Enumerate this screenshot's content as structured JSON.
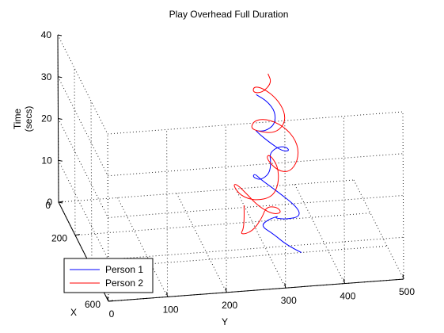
{
  "chart_data": {
    "type": "line",
    "projection": "3d",
    "title": "Play Overhead Full Duration",
    "xlabel": "X",
    "ylabel": "Y",
    "zlabel_lines": [
      "Time",
      "(secs)"
    ],
    "xticks": [
      "0",
      "200",
      "600"
    ],
    "yticks": [
      "0",
      "100",
      "200",
      "300",
      "400",
      "500"
    ],
    "zticks": [
      "0",
      "10",
      "20",
      "30",
      "40"
    ],
    "xlim": [
      0,
      600
    ],
    "ylim": [
      0,
      500
    ],
    "zlim": [
      0,
      40
    ],
    "grid": true,
    "legend_position": "bottom-left",
    "series": [
      {
        "name": "Person 1",
        "color": "#0000ff",
        "points": [
          [
            400,
            355,
            0
          ],
          [
            380,
            335,
            1
          ],
          [
            330,
            318,
            2
          ],
          [
            300,
            300,
            3
          ],
          [
            290,
            315,
            4
          ],
          [
            300,
            330,
            5
          ],
          [
            330,
            322,
            6
          ],
          [
            360,
            318,
            7
          ],
          [
            395,
            330,
            8
          ],
          [
            410,
            352,
            9
          ],
          [
            380,
            352,
            10
          ],
          [
            300,
            328,
            11
          ],
          [
            250,
            308,
            12
          ],
          [
            240,
            300,
            13
          ],
          [
            270,
            292,
            14
          ],
          [
            310,
            288,
            15
          ],
          [
            350,
            294,
            16
          ],
          [
            340,
            310,
            17
          ],
          [
            300,
            318,
            18
          ],
          [
            270,
            320,
            19
          ],
          [
            260,
            336,
            20
          ],
          [
            290,
            346,
            21
          ],
          [
            340,
            344,
            22
          ],
          [
            360,
            328,
            23
          ],
          [
            330,
            312,
            24
          ],
          [
            310,
            300,
            25
          ],
          [
            300,
            292,
            26
          ],
          [
            330,
            290,
            27
          ],
          [
            360,
            300,
            28
          ],
          [
            350,
            318,
            29
          ],
          [
            300,
            326,
            30
          ],
          [
            260,
            318,
            31
          ],
          [
            240,
            302,
            32
          ]
        ]
      },
      {
        "name": "Person 2",
        "color": "#ff0000",
        "points": [
          [
            100,
            300,
            0
          ],
          [
            250,
            280,
            1
          ],
          [
            320,
            262,
            2
          ],
          [
            330,
            282,
            3
          ],
          [
            280,
            305,
            4
          ],
          [
            240,
            318,
            5
          ],
          [
            270,
            332,
            6
          ],
          [
            330,
            332,
            7
          ],
          [
            360,
            312,
            8
          ],
          [
            330,
            292,
            9
          ],
          [
            280,
            280,
            10
          ],
          [
            240,
            268,
            11
          ],
          [
            270,
            258,
            12
          ],
          [
            360,
            258,
            13
          ],
          [
            420,
            275,
            14
          ],
          [
            430,
            302,
            15
          ],
          [
            380,
            320,
            16
          ],
          [
            300,
            330,
            17
          ],
          [
            250,
            322,
            18
          ],
          [
            300,
            310,
            19
          ],
          [
            400,
            315,
            20
          ],
          [
            440,
            330,
            21
          ],
          [
            400,
            350,
            22
          ],
          [
            330,
            360,
            23
          ],
          [
            260,
            352,
            24
          ],
          [
            220,
            328,
            25
          ],
          [
            240,
            300,
            26
          ],
          [
            310,
            282,
            27
          ],
          [
            360,
            290,
            28
          ],
          [
            400,
            310,
            29
          ],
          [
            380,
            330,
            30
          ],
          [
            330,
            338,
            31
          ],
          [
            270,
            332,
            32
          ],
          [
            230,
            315,
            33
          ],
          [
            240,
            298,
            34
          ],
          [
            300,
            288,
            35
          ],
          [
            330,
            300,
            36
          ],
          [
            300,
            320,
            37
          ],
          [
            270,
            318,
            38
          ]
        ]
      }
    ]
  }
}
